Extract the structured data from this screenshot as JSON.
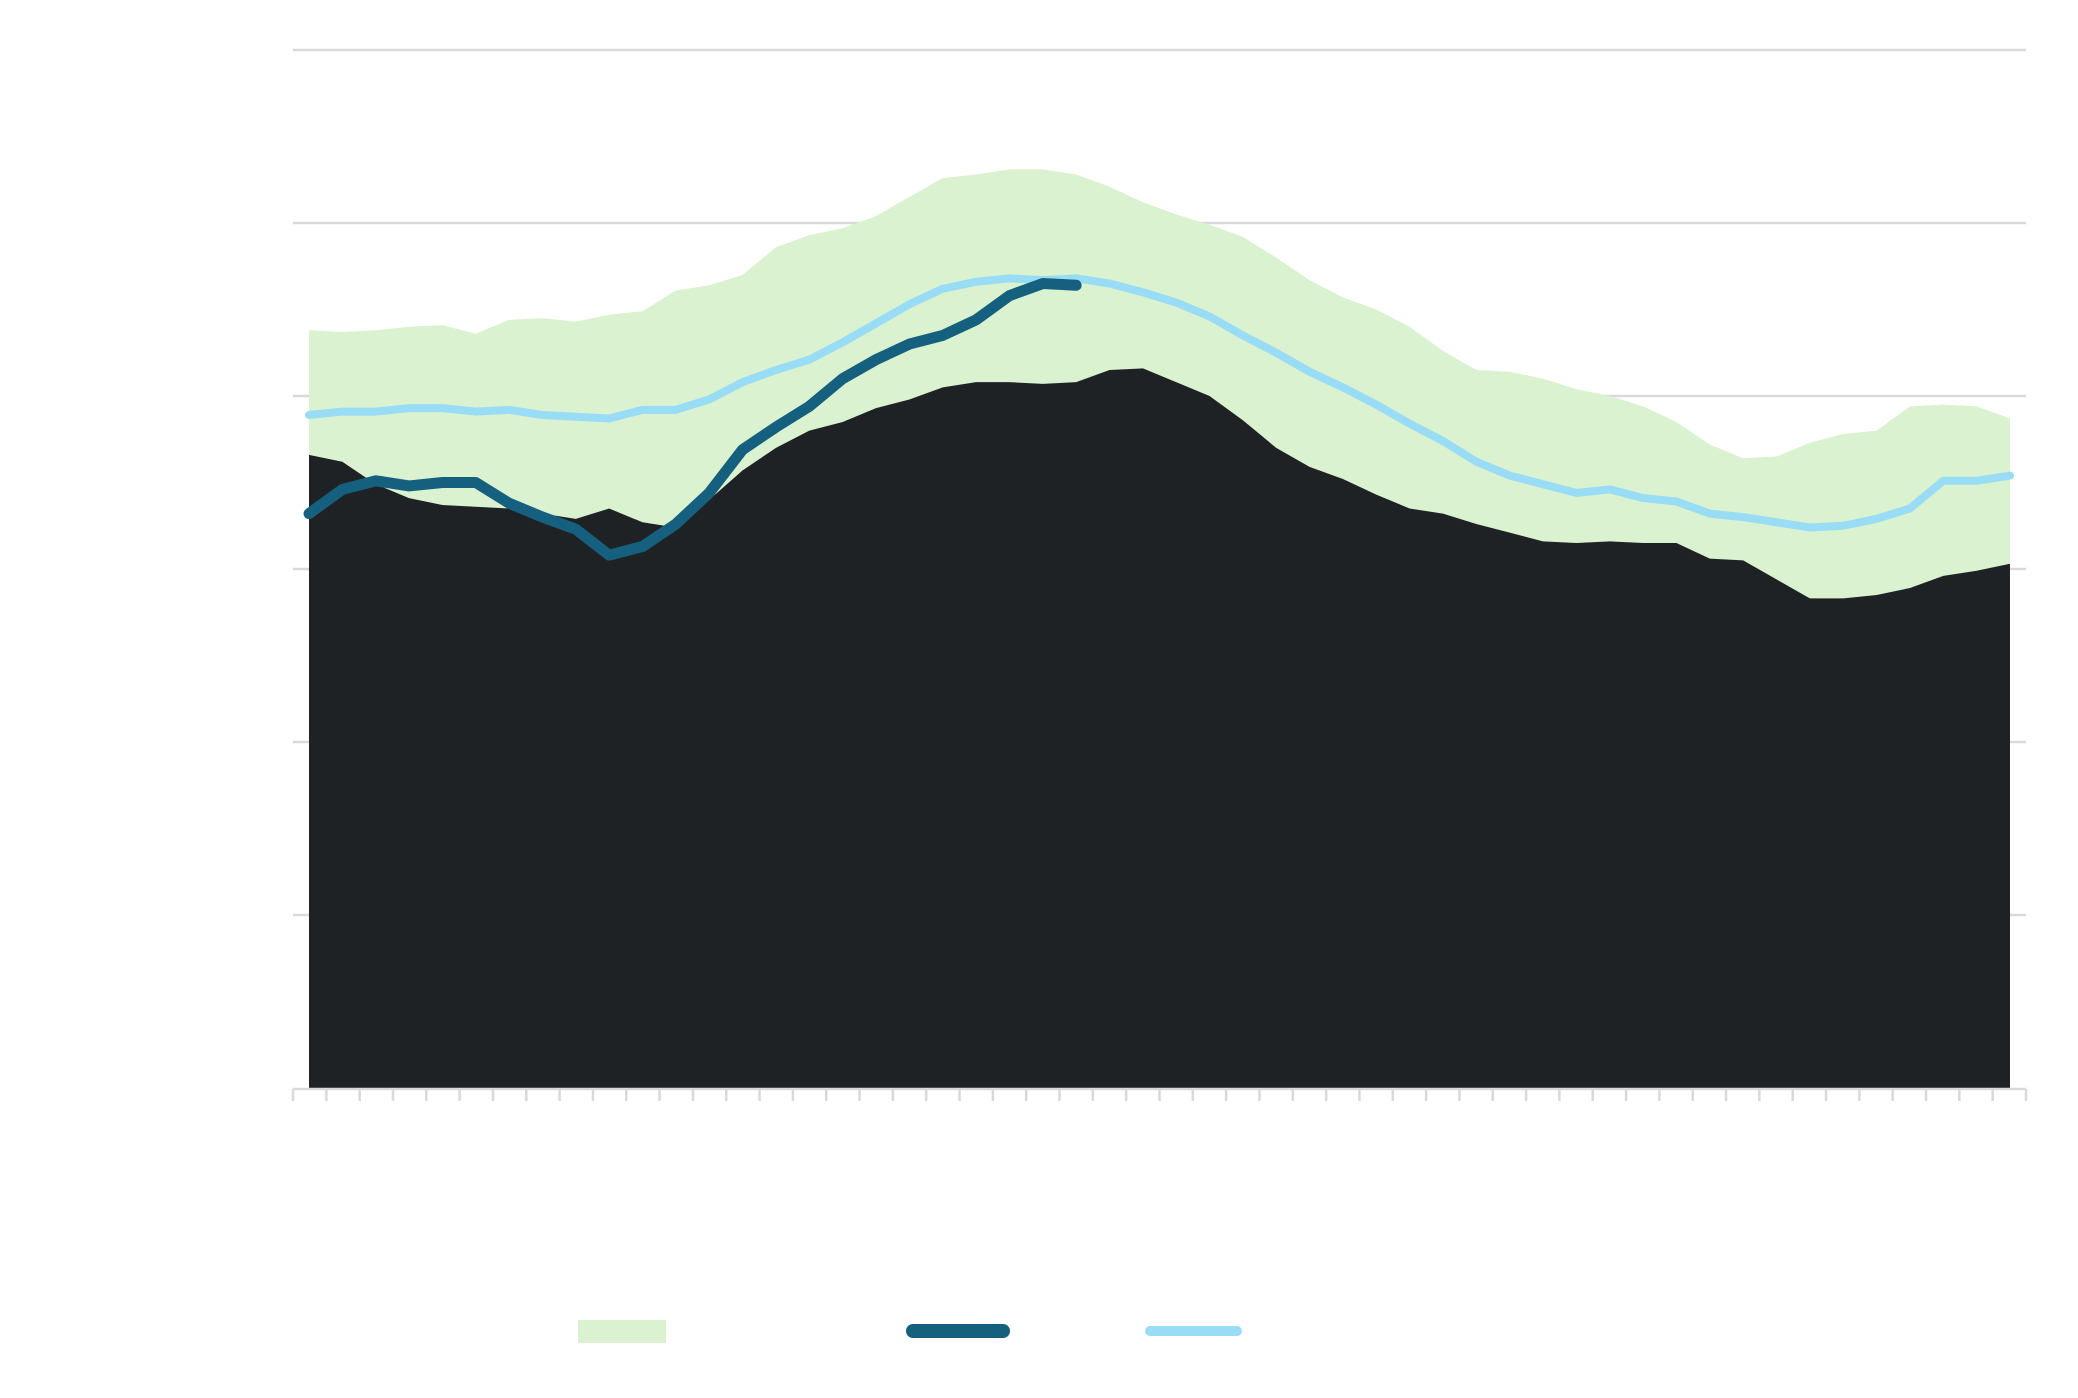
{
  "chart_data": {
    "type": "area",
    "title": "",
    "xlabel": "",
    "ylabel": "",
    "ylim": [
      0,
      60
    ],
    "ytick_step": 10,
    "grid": true,
    "x_count": 52,
    "legend_position": "bottom",
    "colors": {
      "range_band": "#daf2d0",
      "base_area": "#1f2225",
      "current_line": "#16607f",
      "average_line": "#99dcf5",
      "grid": "#d9d9d9"
    },
    "series": [
      {
        "name": "",
        "kind": "band-upper",
        "values": [
          43.8,
          43.7,
          43.8,
          44.0,
          44.1,
          43.6,
          44.4,
          44.5,
          44.3,
          44.7,
          44.9,
          46.1,
          46.4,
          47.0,
          48.6,
          49.3,
          49.7,
          50.4,
          51.5,
          52.6,
          52.8,
          53.1,
          53.1,
          52.8,
          52.1,
          51.2,
          50.5,
          49.9,
          49.2,
          48.0,
          46.7,
          45.7,
          45.0,
          44.0,
          42.6,
          41.5,
          41.4,
          41.0,
          40.4,
          40.0,
          39.4,
          38.5,
          37.2,
          36.4,
          36.5,
          37.3,
          37.8,
          38.0,
          39.4,
          39.5,
          39.4,
          38.7
        ]
      },
      {
        "name": "",
        "kind": "area",
        "values": [
          36.6,
          36.2,
          34.9,
          34.1,
          33.7,
          33.6,
          33.5,
          33.2,
          32.9,
          33.5,
          32.7,
          32.4,
          34.0,
          35.7,
          37.0,
          38.0,
          38.5,
          39.3,
          39.8,
          40.5,
          40.8,
          40.8,
          40.7,
          40.8,
          41.5,
          41.6,
          40.8,
          40.0,
          38.6,
          37.0,
          35.9,
          35.2,
          34.3,
          33.5,
          33.2,
          32.6,
          32.1,
          31.6,
          31.5,
          31.6,
          31.5,
          31.5,
          30.6,
          30.5,
          29.4,
          28.3,
          28.3,
          28.5,
          28.9,
          29.6,
          29.9,
          30.3
        ]
      },
      {
        "name": "",
        "kind": "line",
        "values": [
          33.2,
          34.6,
          35.1,
          34.8,
          35.0,
          35.0,
          33.8,
          33.0,
          32.3,
          30.8,
          31.3,
          32.6,
          34.4,
          36.9,
          38.2,
          39.4,
          41.0,
          42.1,
          43.0,
          43.5,
          44.4,
          45.8,
          46.5,
          46.4
        ]
      },
      {
        "name": "",
        "kind": "line",
        "values": [
          38.9,
          39.1,
          39.1,
          39.3,
          39.3,
          39.1,
          39.2,
          38.9,
          38.8,
          38.7,
          39.2,
          39.2,
          39.8,
          40.8,
          41.5,
          42.1,
          43.1,
          44.2,
          45.3,
          46.2,
          46.6,
          46.8,
          46.7,
          46.8,
          46.5,
          46.0,
          45.4,
          44.6,
          43.5,
          42.5,
          41.4,
          40.5,
          39.5,
          38.4,
          37.4,
          36.2,
          35.4,
          34.9,
          34.4,
          34.6,
          34.1,
          33.9,
          33.2,
          33.0,
          32.7,
          32.4,
          32.5,
          32.9,
          33.5,
          35.1,
          35.1,
          35.4
        ]
      }
    ]
  }
}
